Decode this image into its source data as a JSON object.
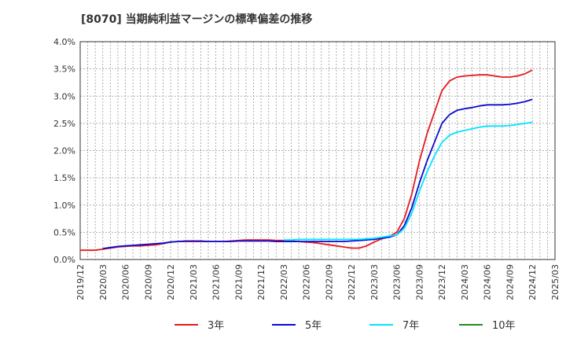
{
  "chart_data": {
    "type": "line",
    "title": "[8070]  当期純利益マージンの標準偏差の推移",
    "xlabel": "",
    "ylabel": "",
    "ylim": [
      0,
      4.0
    ],
    "y_ticks": [
      "0.0%",
      "0.5%",
      "1.0%",
      "1.5%",
      "2.0%",
      "2.5%",
      "3.0%",
      "3.5%",
      "4.0%"
    ],
    "x_ticks": [
      "2019/12",
      "2020/03",
      "2020/06",
      "2020/09",
      "2020/12",
      "2021/03",
      "2021/06",
      "2021/09",
      "2021/12",
      "2022/03",
      "2022/06",
      "2022/09",
      "2022/12",
      "2023/03",
      "2023/06",
      "2023/09",
      "2023/12",
      "2024/03",
      "2024/06",
      "2024/09",
      "2024/12",
      "2025/03"
    ],
    "grid": true,
    "legend_position": "bottom",
    "colors": {
      "3年": "#e41a1c",
      "5年": "#0a0ad0",
      "7年": "#00e5ff",
      "10年": "#228b22"
    },
    "series": [
      {
        "name": "3年",
        "x": [
          "2019/12",
          "2020/01",
          "2020/02",
          "2020/03",
          "2020/04",
          "2020/05",
          "2020/06",
          "2020/07",
          "2020/08",
          "2020/09",
          "2020/10",
          "2020/11",
          "2020/12",
          "2021/01",
          "2021/02",
          "2021/03",
          "2021/04",
          "2021/05",
          "2021/06",
          "2021/07",
          "2021/08",
          "2021/09",
          "2021/10",
          "2021/11",
          "2021/12",
          "2022/01",
          "2022/02",
          "2022/03",
          "2022/04",
          "2022/05",
          "2022/06",
          "2022/07",
          "2022/08",
          "2022/09",
          "2022/10",
          "2022/11",
          "2022/12",
          "2023/01",
          "2023/02",
          "2023/03",
          "2023/04",
          "2023/05",
          "2023/06",
          "2023/07",
          "2023/08",
          "2023/09",
          "2023/10",
          "2023/11",
          "2023/12",
          "2024/01",
          "2024/02",
          "2024/03",
          "2024/04",
          "2024/05",
          "2024/06",
          "2024/07",
          "2024/08",
          "2024/09",
          "2024/10",
          "2024/11",
          "2024/12"
        ],
        "values": [
          0.17,
          0.17,
          0.17,
          0.19,
          0.21,
          0.23,
          0.24,
          0.25,
          0.25,
          0.26,
          0.27,
          0.29,
          0.32,
          0.33,
          0.33,
          0.33,
          0.33,
          0.33,
          0.33,
          0.33,
          0.34,
          0.35,
          0.36,
          0.36,
          0.36,
          0.36,
          0.35,
          0.35,
          0.34,
          0.33,
          0.32,
          0.31,
          0.29,
          0.27,
          0.25,
          0.23,
          0.21,
          0.21,
          0.25,
          0.32,
          0.38,
          0.42,
          0.5,
          0.75,
          1.2,
          1.8,
          2.3,
          2.7,
          3.1,
          3.28,
          3.35,
          3.37,
          3.38,
          3.39,
          3.39,
          3.37,
          3.35,
          3.35,
          3.37,
          3.41,
          3.48
        ]
      },
      {
        "name": "5年",
        "x": [
          "2020/03",
          "2020/04",
          "2020/05",
          "2020/06",
          "2020/07",
          "2020/08",
          "2020/09",
          "2020/10",
          "2020/11",
          "2020/12",
          "2021/01",
          "2021/02",
          "2021/03",
          "2021/04",
          "2021/05",
          "2021/06",
          "2021/07",
          "2021/08",
          "2021/09",
          "2021/10",
          "2021/11",
          "2021/12",
          "2022/01",
          "2022/02",
          "2022/03",
          "2022/04",
          "2022/05",
          "2022/06",
          "2022/07",
          "2022/08",
          "2022/09",
          "2022/10",
          "2022/11",
          "2022/12",
          "2023/01",
          "2023/02",
          "2023/03",
          "2023/04",
          "2023/05",
          "2023/06",
          "2023/07",
          "2023/08",
          "2023/09",
          "2023/10",
          "2023/11",
          "2023/12",
          "2024/01",
          "2024/02",
          "2024/03",
          "2024/04",
          "2024/05",
          "2024/06",
          "2024/07",
          "2024/08",
          "2024/09",
          "2024/10",
          "2024/11",
          "2024/12"
        ],
        "values": [
          0.2,
          0.22,
          0.24,
          0.25,
          0.26,
          0.27,
          0.28,
          0.29,
          0.3,
          0.32,
          0.33,
          0.34,
          0.34,
          0.34,
          0.33,
          0.33,
          0.33,
          0.33,
          0.34,
          0.34,
          0.34,
          0.34,
          0.34,
          0.33,
          0.33,
          0.33,
          0.33,
          0.33,
          0.33,
          0.33,
          0.33,
          0.33,
          0.33,
          0.34,
          0.35,
          0.36,
          0.37,
          0.39,
          0.41,
          0.45,
          0.62,
          0.95,
          1.4,
          1.8,
          2.15,
          2.5,
          2.66,
          2.74,
          2.77,
          2.79,
          2.82,
          2.84,
          2.84,
          2.84,
          2.85,
          2.87,
          2.9,
          2.94
        ]
      },
      {
        "name": "7年",
        "x": [
          "2022/03",
          "2022/04",
          "2022/05",
          "2022/06",
          "2022/07",
          "2022/08",
          "2022/09",
          "2022/10",
          "2022/11",
          "2022/12",
          "2023/01",
          "2023/02",
          "2023/03",
          "2023/04",
          "2023/05",
          "2023/06",
          "2023/07",
          "2023/08",
          "2023/09",
          "2023/10",
          "2023/11",
          "2023/12",
          "2024/01",
          "2024/02",
          "2024/03",
          "2024/04",
          "2024/05",
          "2024/06",
          "2024/07",
          "2024/08",
          "2024/09",
          "2024/10",
          "2024/11",
          "2024/12"
        ],
        "values": [
          0.36,
          0.36,
          0.37,
          0.37,
          0.37,
          0.37,
          0.37,
          0.37,
          0.37,
          0.37,
          0.37,
          0.38,
          0.39,
          0.41,
          0.43,
          0.45,
          0.57,
          0.85,
          1.25,
          1.6,
          1.9,
          2.15,
          2.28,
          2.34,
          2.37,
          2.4,
          2.43,
          2.45,
          2.45,
          2.45,
          2.46,
          2.48,
          2.5,
          2.52
        ]
      },
      {
        "name": "10年",
        "x": [],
        "values": []
      }
    ]
  }
}
